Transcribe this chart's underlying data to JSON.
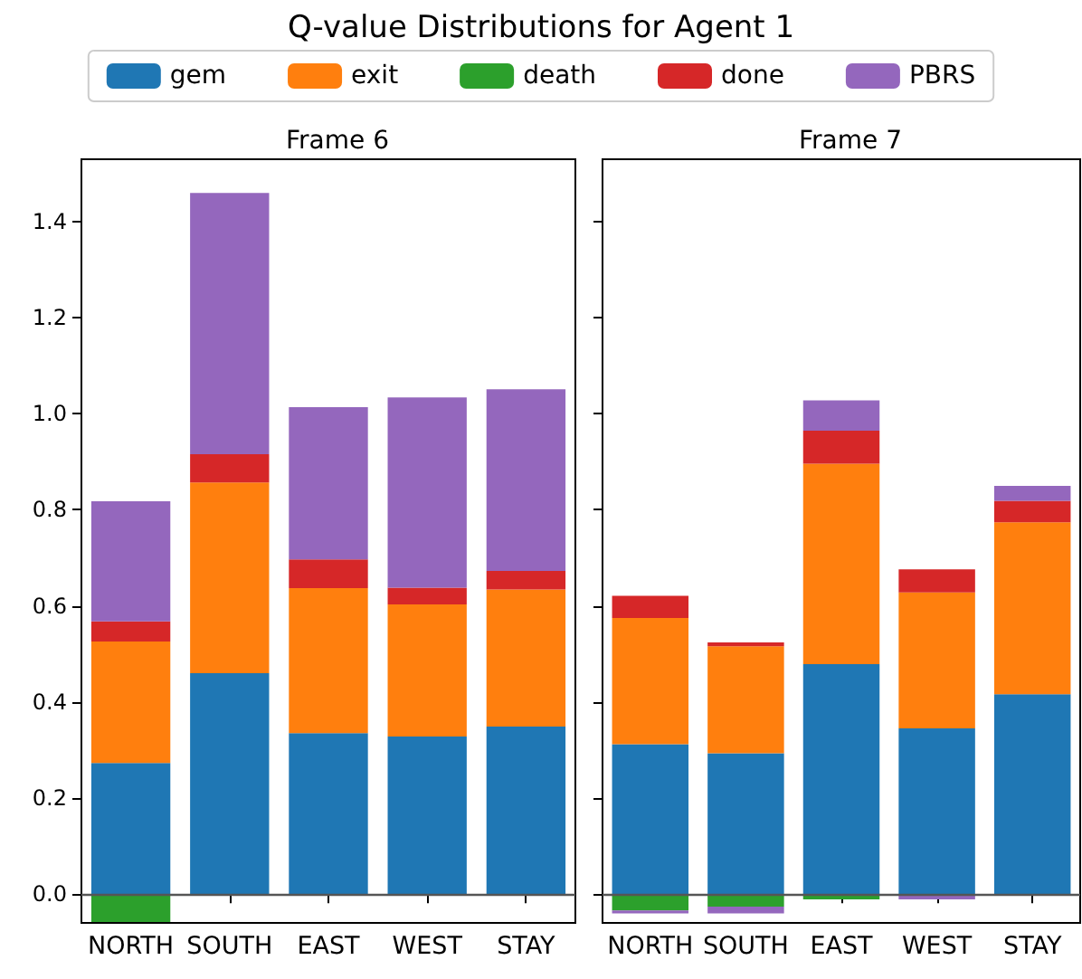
{
  "chart_data": [
    {
      "type": "bar",
      "title": "Q-value Distributions for Agent 1",
      "subtitle": "Frame 6",
      "categories": [
        "NORTH",
        "SOUTH",
        "EAST",
        "WEST",
        "STAY"
      ],
      "stacked": true,
      "legend": "top",
      "grid": false,
      "ylim": [
        -0.06,
        1.53
      ],
      "yticks": [
        {
          "value": 0,
          "label": "0.0"
        },
        0.2,
        0.4,
        0.6,
        0.8,
        {
          "value": 1,
          "label": "1.0"
        },
        1.2,
        1.4
      ],
      "ref_lines": [
        {
          "axis": "y",
          "value": 0,
          "color": "#555555"
        }
      ],
      "series": [
        {
          "name": "gem",
          "color": "#1f77b4",
          "values": [
            0.273,
            0.46,
            0.335,
            0.328,
            0.349
          ]
        },
        {
          "name": "exit",
          "color": "#ff7f0e",
          "values": [
            0.253,
            0.397,
            0.302,
            0.275,
            0.285
          ]
        },
        {
          "name": "death",
          "color": "#2ca02c",
          "values": [
            -0.058,
            0,
            0,
            0,
            0
          ]
        },
        {
          "name": "done",
          "color": "#d62728",
          "values": [
            0.042,
            0.059,
            0.06,
            0.035,
            0.039
          ]
        },
        {
          "name": "PBRS",
          "color": "#9467bd",
          "values": [
            0.25,
            0.544,
            0.317,
            0.396,
            0.378
          ]
        }
      ]
    },
    {
      "type": "bar",
      "subtitle": "Frame 7",
      "categories": [
        "NORTH",
        "SOUTH",
        "EAST",
        "WEST",
        "STAY"
      ],
      "stacked": true,
      "grid": false,
      "tick_labels": "x",
      "ylim": [
        -0.06,
        1.53
      ],
      "yticks": [
        0,
        0.2,
        0.4,
        0.6,
        0.8,
        1,
        1.2,
        1.4
      ],
      "ref_lines": [
        {
          "axis": "y",
          "value": 0,
          "color": "#555555"
        }
      ],
      "series": [
        {
          "color": "#1f77b4",
          "values": [
            0.312,
            0.293,
            0.479,
            0.345,
            0.416
          ]
        },
        {
          "color": "#ff7f0e",
          "values": [
            0.263,
            0.223,
            0.417,
            0.283,
            0.358
          ]
        },
        {
          "color": "#2ca02c",
          "values": [
            -0.034,
            -0.026,
            -0.011,
            0,
            0
          ]
        },
        {
          "color": "#d62728",
          "values": [
            0.046,
            0.008,
            0.069,
            0.048,
            0.045
          ]
        },
        {
          "color": "#9467bd",
          "values": [
            -0.006,
            -0.014,
            0.063,
            -0.011,
            0.031
          ]
        }
      ]
    }
  ]
}
